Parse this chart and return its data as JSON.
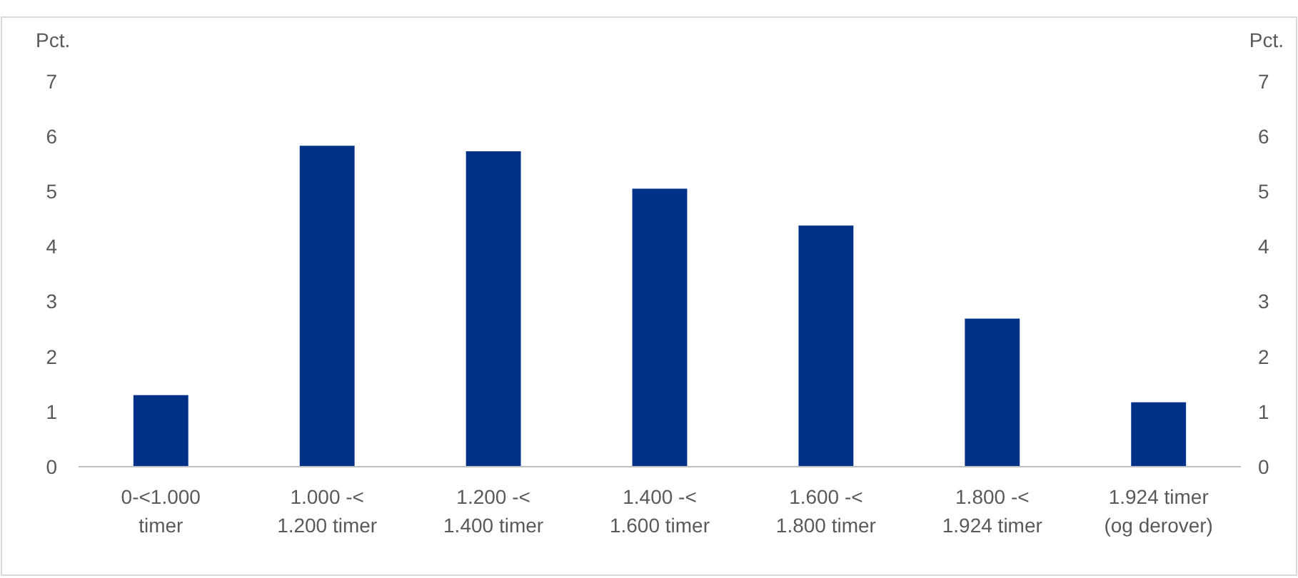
{
  "chart_data": {
    "type": "bar",
    "categories": [
      "0-<1.000\ntimer",
      "1.000 -<\n1.200 timer",
      "1.200 -<\n1.400 timer",
      "1.400 -<\n1.600 timer",
      "1.600 -<\n1.800 timer",
      "1.800 -<\n1.924 timer",
      "1.924 timer\n(og derover)"
    ],
    "values": [
      1.3,
      5.83,
      5.73,
      5.05,
      4.38,
      2.69,
      1.17
    ],
    "color": "#003087",
    "ylabel": "Pct.",
    "y2label": "Pct.",
    "ylim": [
      0,
      7
    ],
    "yticks": [
      0,
      1,
      2,
      3,
      4,
      5,
      6,
      7
    ],
    "y2lim": [
      0,
      7
    ],
    "y2ticks": [
      0,
      1,
      2,
      3,
      4,
      5,
      6,
      7
    ]
  }
}
